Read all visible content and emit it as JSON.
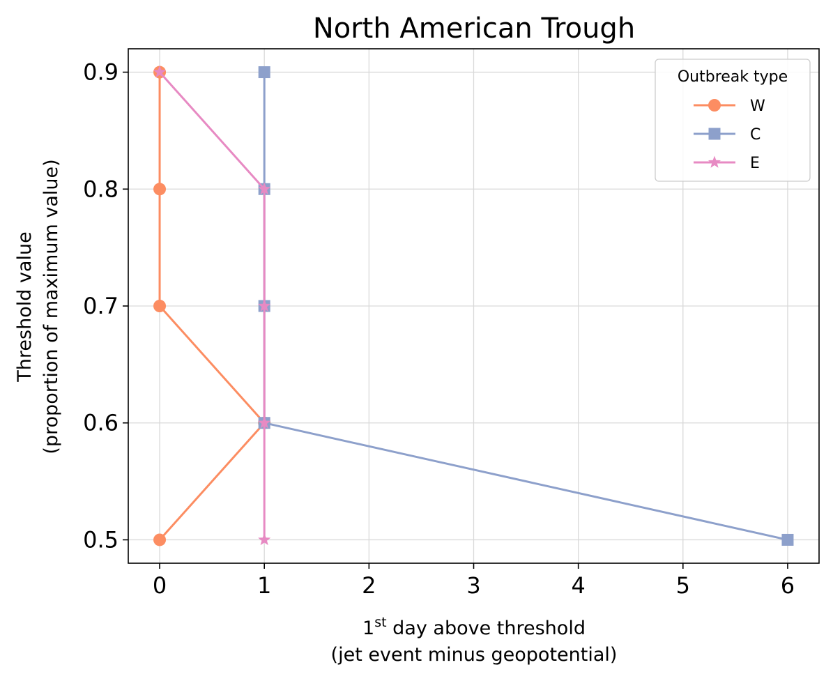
{
  "chart_data": {
    "type": "line",
    "title": "North American Trough",
    "xlabel_line1_prefix": "1",
    "xlabel_line1_sup": "st",
    "xlabel_line1_suffix": " day above threshold",
    "xlabel_line2": "(jet event minus geopotential)",
    "ylabel_line1": "Threshold value",
    "ylabel_line2": "(proportion of maximum value)",
    "xlim": [
      -0.3,
      6.3
    ],
    "ylim": [
      0.48,
      0.92
    ],
    "xticks": [
      0,
      1,
      2,
      3,
      4,
      5,
      6
    ],
    "xtick_labels": [
      "0",
      "1",
      "2",
      "3",
      "4",
      "5",
      "6"
    ],
    "yticks": [
      0.5,
      0.6,
      0.7,
      0.8,
      0.9
    ],
    "ytick_labels": [
      "0.5",
      "0.6",
      "0.7",
      "0.8",
      "0.9"
    ],
    "grid": true,
    "legend": {
      "title": "Outbreak type",
      "location": "upper right"
    },
    "series": [
      {
        "name": "W",
        "color": "#fc8d62",
        "marker": "circle",
        "points": [
          [
            0,
            0.9
          ],
          [
            0,
            0.8
          ],
          [
            0,
            0.7
          ],
          [
            1,
            0.6
          ],
          [
            0,
            0.5
          ]
        ]
      },
      {
        "name": "C",
        "color": "#8da0cb",
        "marker": "square",
        "points": [
          [
            1,
            0.9
          ],
          [
            1,
            0.8
          ],
          [
            1,
            0.7
          ],
          [
            1,
            0.6
          ],
          [
            6,
            0.5
          ]
        ]
      },
      {
        "name": "E",
        "color": "#e78ac3",
        "marker": "star",
        "points": [
          [
            0,
            0.9
          ],
          [
            1,
            0.8
          ],
          [
            1,
            0.7
          ],
          [
            1,
            0.6
          ],
          [
            1,
            0.5
          ]
        ]
      }
    ]
  }
}
